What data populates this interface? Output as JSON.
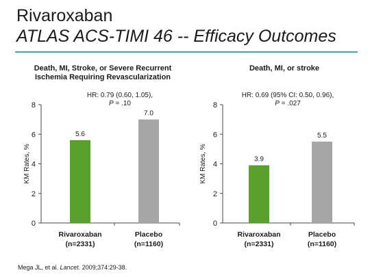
{
  "slide": {
    "title_line1": "Rivaroxaban",
    "title_line2": "ATLAS ACS-TIMI 46 -- Efficacy Outcomes",
    "source_prefix": "Mega JL, et al. ",
    "source_journal": "Lancet",
    "source_suffix": ". 2009;374:29-38.",
    "colors": {
      "rule": "#4aa3a6",
      "rivaroxaban": "#5aa02c",
      "placebo": "#a6a6a6"
    }
  },
  "chart_data": [
    {
      "type": "bar",
      "title_line1": "Death, MI, Stroke, or Severe Recurrent",
      "title_line2": "Ischemia Requiring Revascularization",
      "annotation_line1": "HR: 0.79 (0.60, 1.05),",
      "annotation_p_label": "P",
      "annotation_p_value": " = .10",
      "ylabel": "KM Rates, %",
      "ylim": [
        0,
        8
      ],
      "yticks": [
        0,
        2,
        4,
        6,
        8
      ],
      "categories": [
        {
          "name": "Rivaroxaban",
          "n": "(n=2331)"
        },
        {
          "name": "Placebo",
          "n": "(n=1160)"
        }
      ],
      "values": [
        5.6,
        7.0
      ],
      "value_labels": [
        "5.6",
        "7.0"
      ],
      "grid": false
    },
    {
      "type": "bar",
      "title_line1": "Death, MI, or stroke",
      "title_line2": "",
      "annotation_line1": "HR: 0.69 (95% CI: 0.50, 0.96),",
      "annotation_p_label": "P",
      "annotation_p_value": " = .027",
      "ylabel": "KM Rates, %",
      "ylim": [
        0,
        8
      ],
      "yticks": [
        0,
        2,
        4,
        6,
        8
      ],
      "categories": [
        {
          "name": "Rivaroxaban",
          "n": "(n=2331)"
        },
        {
          "name": "Placebo",
          "n": "(n=1160)"
        }
      ],
      "values": [
        3.9,
        5.5
      ],
      "value_labels": [
        "3.9",
        "5.5"
      ],
      "grid": false
    }
  ]
}
